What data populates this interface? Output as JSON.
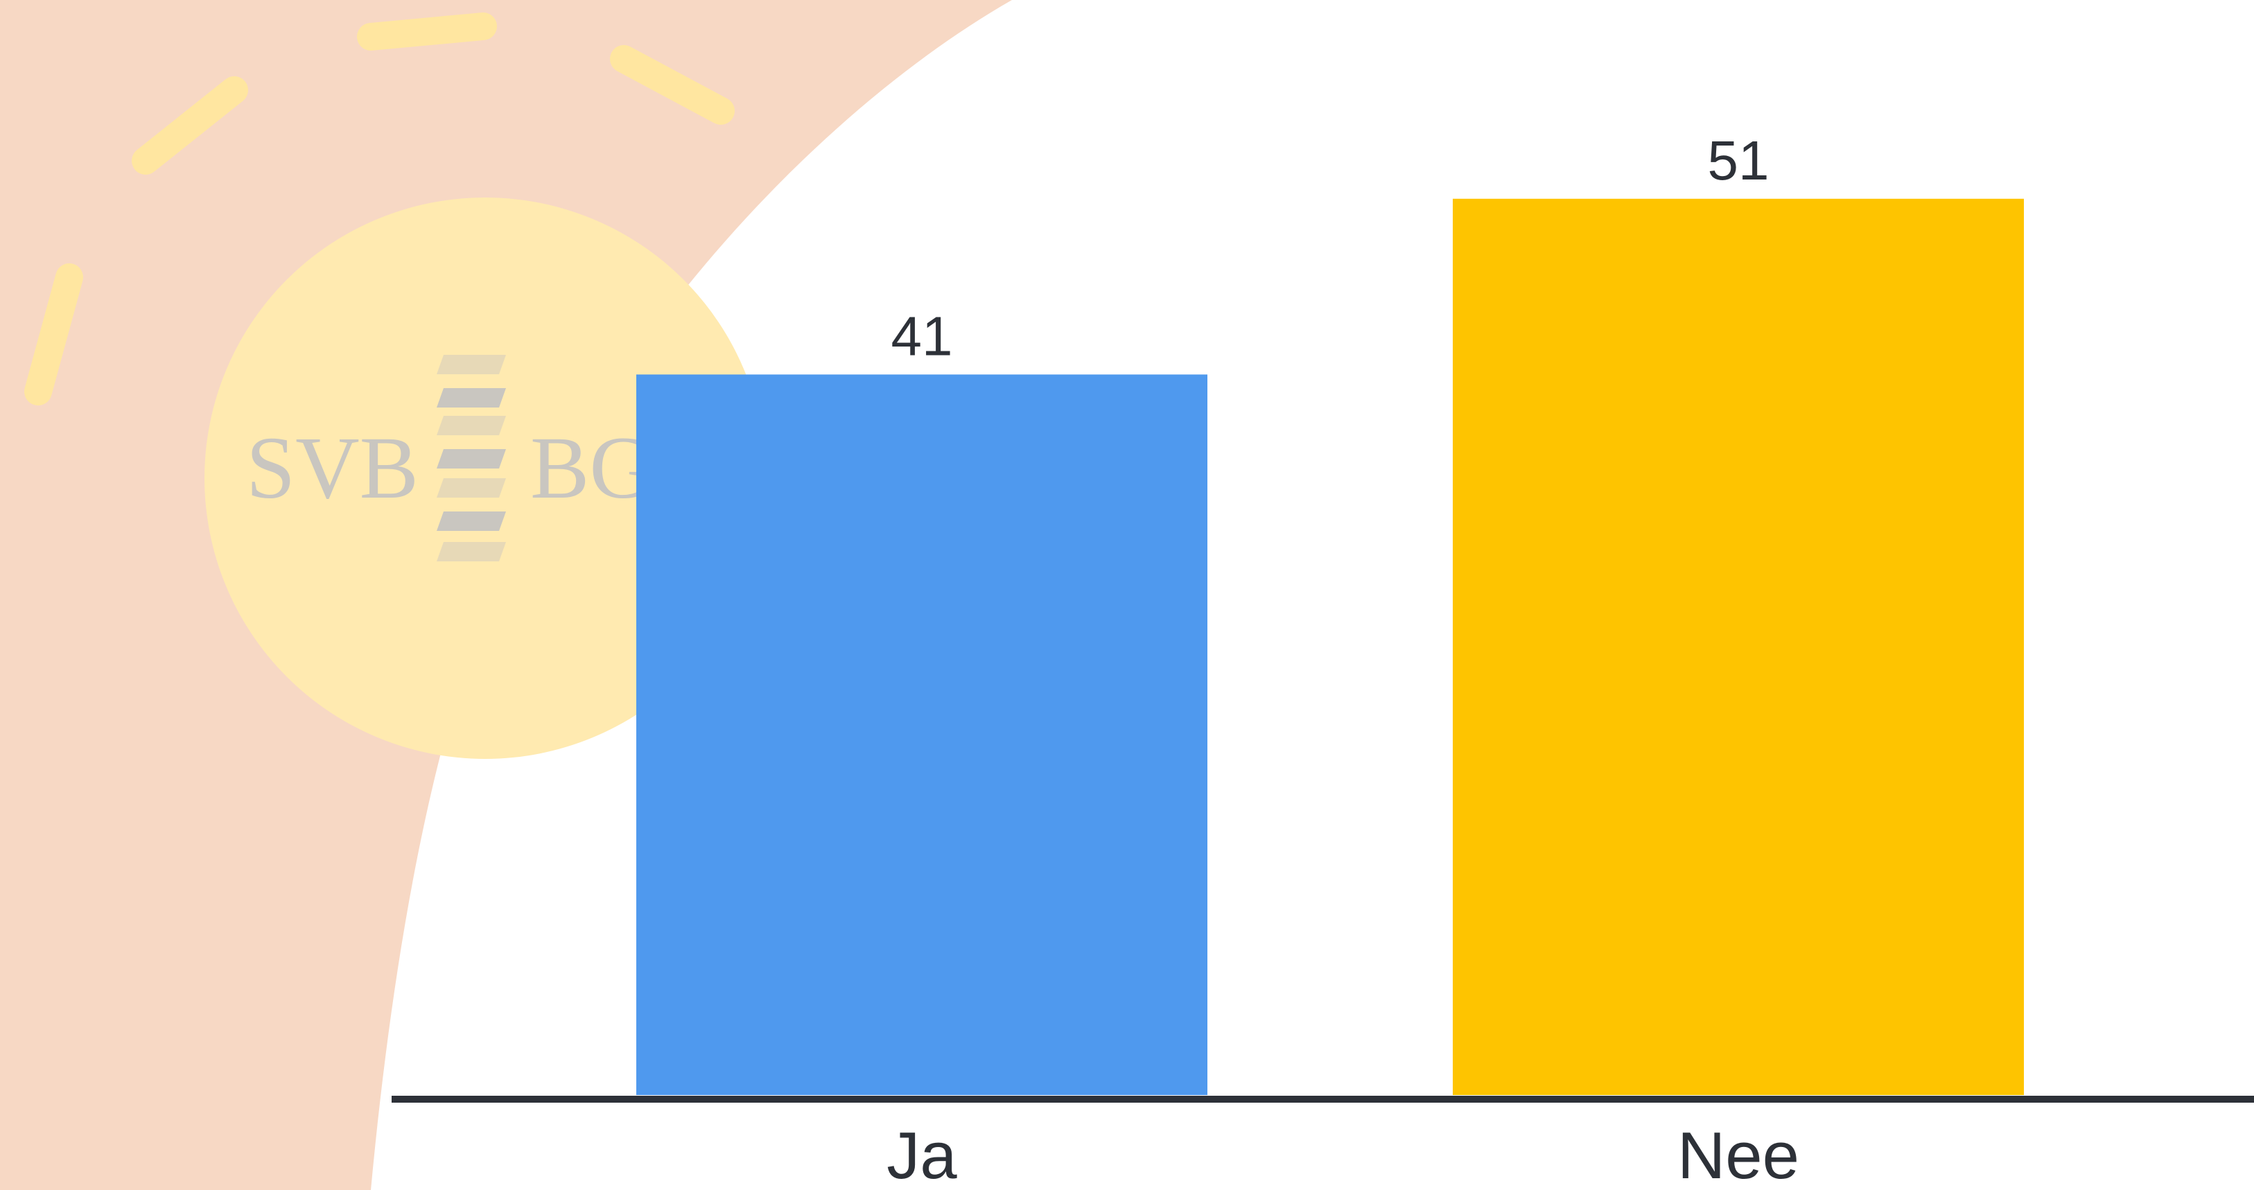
{
  "background": {
    "page_color": "#ffffff",
    "shape_color": "#f7d8c4",
    "sun_color": "#ffeab0",
    "ray_color": "#ffe6a0",
    "logo_color": "#c9c6c0",
    "logo": {
      "left_text": "SVB",
      "right_text": "BG"
    }
  },
  "chart_data": {
    "type": "bar",
    "categories": [
      "Ja",
      "Nee"
    ],
    "values": [
      41,
      51
    ],
    "colors": [
      "#4f99ee",
      "#fec400"
    ],
    "data_labels": [
      "41",
      "51"
    ],
    "title": "",
    "xlabel": "",
    "ylabel": "",
    "ylim": [
      0,
      56
    ],
    "grid": false,
    "legend": "none",
    "axis_color": "#2d3138",
    "label_color": "#2d3138"
  }
}
